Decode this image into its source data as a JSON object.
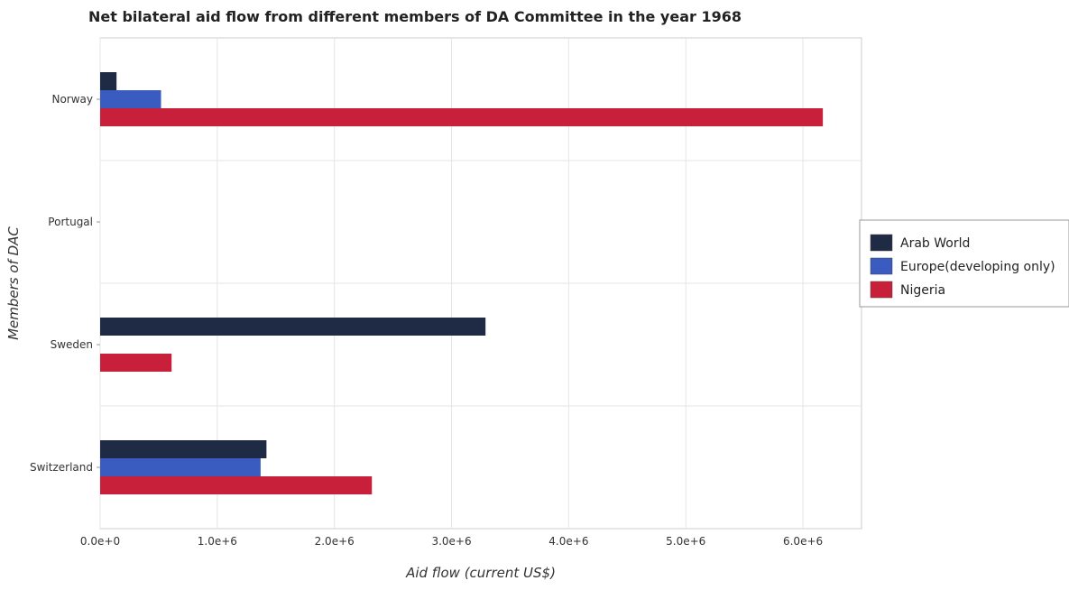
{
  "chart_data": {
    "type": "bar",
    "orientation": "horizontal",
    "title": "Net bilateral aid flow from different members of DA Committee in the year 1968",
    "xlabel": "Aid flow (current US$)",
    "ylabel": "Members of DAC",
    "categories": [
      "Norway",
      "Portugal",
      "Sweden",
      "Switzerland"
    ],
    "series": [
      {
        "name": "Arab World",
        "color": "#1f2a44",
        "values": [
          140000,
          0,
          3290000,
          1420000
        ]
      },
      {
        "name": "Europe(developing only)",
        "color": "#3a5bbf",
        "values": [
          520000,
          0,
          0,
          1370000
        ]
      },
      {
        "name": "Nigeria",
        "color": "#c8203a",
        "values": [
          6170000,
          0,
          610000,
          2320000
        ]
      }
    ],
    "xlim": [
      0,
      6500000
    ],
    "xticks": [
      0,
      1000000,
      2000000,
      3000000,
      4000000,
      5000000,
      6000000
    ],
    "xtick_labels": [
      "0.0e+0",
      "1.0e+6",
      "2.0e+6",
      "3.0e+6",
      "4.0e+6",
      "5.0e+6",
      "6.0e+6"
    ],
    "grid": true,
    "legend_position": "right"
  }
}
